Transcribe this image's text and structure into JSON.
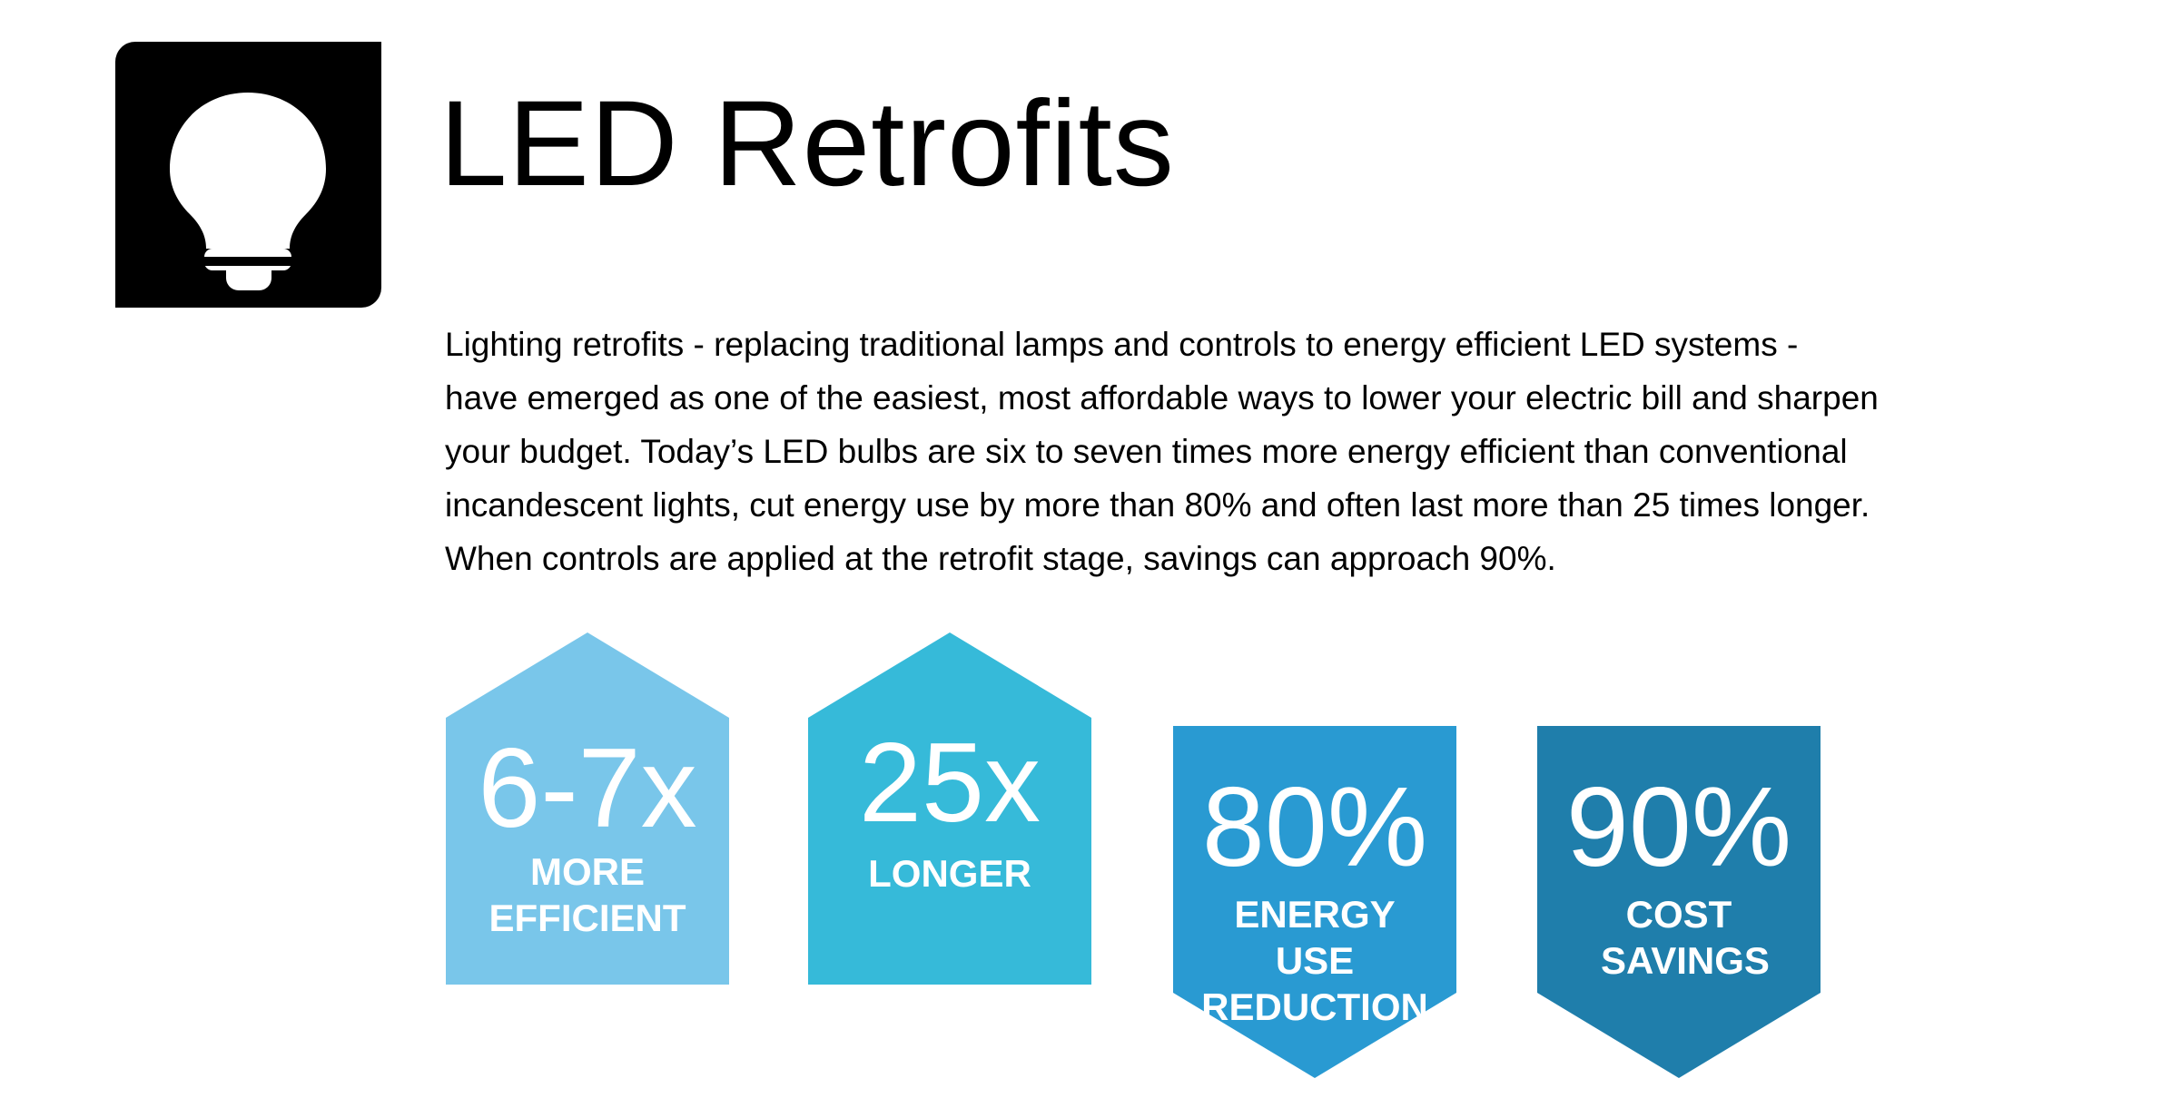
{
  "header": {
    "icon": "lightbulb-icon",
    "title": "LED Retrofits"
  },
  "intro": {
    "lines": [
      "Lighting retrofits - replacing traditional lamps and controls to energy efficient LED systems  -",
      "have emerged as one of the easiest, most affordable ways to lower your electric bill and sharpen",
      "your budget. Today’s LED bulbs are six to seven times more energy efficient than conventional",
      "incandescent lights, cut energy use by more than 80% and often last more than 25 times longer.",
      "When controls are applied at the retrofit stage, savings can approach 90%."
    ]
  },
  "stats": [
    {
      "value": "6-7x",
      "label": "MORE EFFICIENT",
      "color": "#79c6ea",
      "shape": "house"
    },
    {
      "value": "25x",
      "label": "LONGER",
      "color": "#36bad9",
      "shape": "house"
    },
    {
      "value": "80%",
      "label": "ENERGY USE REDUCTION",
      "color": "#299ad2",
      "shape": "chevron-down"
    },
    {
      "value": "90%",
      "label": "COST SAVINGS",
      "color": "#1f7eab",
      "shape": "chevron-down"
    }
  ]
}
